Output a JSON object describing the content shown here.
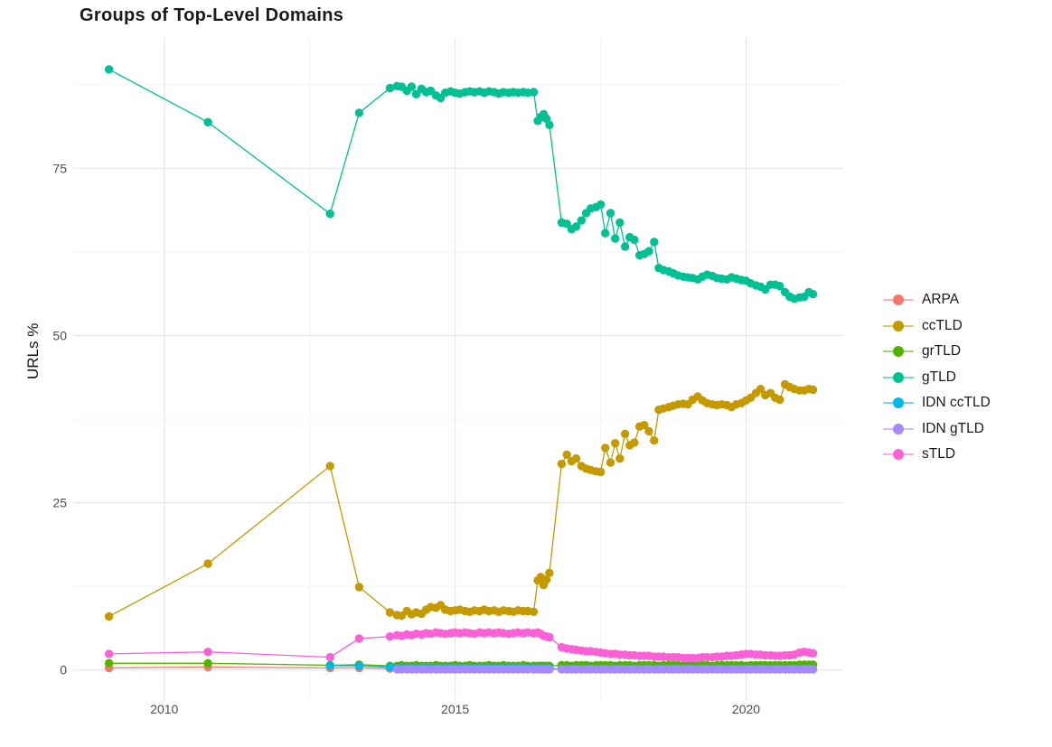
{
  "title": "Groups of Top-Level Domains",
  "axes": {
    "y_label": "URLs %",
    "x_tick_labels": [
      "2010",
      "2015",
      "2020"
    ],
    "y_tick_labels": [
      "0",
      "25",
      "50",
      "75"
    ]
  },
  "colors": {
    "grid_major": "#e5e5e5",
    "grid_minor": "#f2f2f2",
    "axis_text": "#4d4d4d",
    "title_text": "#1a1a1a"
  },
  "chart_data": {
    "type": "line",
    "title": "Groups of Top-Level Domains",
    "xlabel": "",
    "ylabel": "URLs %",
    "grid": true,
    "legend_position": "right",
    "x_range": [
      2008.45,
      2021.67
    ],
    "y_range": [
      -4.5,
      94.5
    ],
    "x_major_ticks": [
      2010,
      2015,
      2020
    ],
    "x_minor_gridlines": [
      2012.5,
      2017.5
    ],
    "y_major_ticks": [
      0,
      25,
      50,
      75
    ],
    "y_minor_gridlines": [
      12.5,
      37.5,
      62.5,
      87.5
    ],
    "x": [
      2009.05,
      2010.75,
      2012.85,
      2013.35,
      2013.88,
      2014.0,
      2014.08,
      2014.17,
      2014.25,
      2014.33,
      2014.42,
      2014.5,
      2014.58,
      2014.67,
      2014.75,
      2014.83,
      2014.92,
      2015.0,
      2015.08,
      2015.17,
      2015.25,
      2015.33,
      2015.42,
      2015.5,
      2015.58,
      2015.67,
      2015.75,
      2015.83,
      2015.92,
      2016.0,
      2016.08,
      2016.17,
      2016.25,
      2016.35,
      2016.42,
      2016.47,
      2016.52,
      2016.57,
      2016.62,
      2016.83,
      2016.92,
      2017.0,
      2017.08,
      2017.17,
      2017.25,
      2017.33,
      2017.42,
      2017.5,
      2017.58,
      2017.67,
      2017.75,
      2017.83,
      2017.92,
      2018.0,
      2018.08,
      2018.17,
      2018.25,
      2018.33,
      2018.42,
      2018.5,
      2018.58,
      2018.67,
      2018.75,
      2018.83,
      2018.92,
      2019.0,
      2019.08,
      2019.17,
      2019.25,
      2019.33,
      2019.42,
      2019.5,
      2019.58,
      2019.67,
      2019.75,
      2019.83,
      2019.92,
      2020.0,
      2020.08,
      2020.17,
      2020.25,
      2020.33,
      2020.42,
      2020.5,
      2020.58,
      2020.67,
      2020.75,
      2020.83,
      2020.92,
      2021.0,
      2021.08,
      2021.15
    ],
    "series": [
      {
        "name": "ARPA",
        "color": "#F8766D",
        "values": [
          0.3,
          0.45,
          0.3,
          0.3,
          0.2,
          0.15,
          0.15,
          0.15,
          0.15,
          0.15,
          0.15,
          0.15,
          0.15,
          0.15,
          0.15,
          0.15,
          0.15,
          0.15,
          0.15,
          0.15,
          0.15,
          0.15,
          0.15,
          0.15,
          0.15,
          0.15,
          0.15,
          0.15,
          0.15,
          0.15,
          0.15,
          0.15,
          0.15,
          0.15,
          0.12,
          0.12,
          0.12,
          0.12,
          0.12,
          0.1,
          0.1,
          0.1,
          0.1,
          0.1,
          0.1,
          0.1,
          0.1,
          0.1,
          0.1,
          0.1,
          0.1,
          0.1,
          0.1,
          0.1,
          0.1,
          0.1,
          0.1,
          0.1,
          0.1,
          0.1,
          0.1,
          0.1,
          0.1,
          0.1,
          0.1,
          0.1,
          0.1,
          0.1,
          0.1,
          0.1,
          0.1,
          0.1,
          0.1,
          0.1,
          0.1,
          0.1,
          0.1,
          0.1,
          0.1,
          0.1,
          0.1,
          0.1,
          0.1,
          0.1,
          0.1,
          0.1,
          0.1,
          0.1,
          0.1,
          0.1,
          0.1,
          0.1
        ]
      },
      {
        "name": "ccTLD",
        "color": "#C49A00",
        "values": [
          8.0,
          15.9,
          30.5,
          12.4,
          8.6,
          8.2,
          8.1,
          8.8,
          8.3,
          8.6,
          8.4,
          9.0,
          9.4,
          9.3,
          9.7,
          9.0,
          8.8,
          8.9,
          9.0,
          8.8,
          8.7,
          8.9,
          8.8,
          9.0,
          8.8,
          8.9,
          8.7,
          8.9,
          8.8,
          8.7,
          8.9,
          8.8,
          8.8,
          8.7,
          13.4,
          13.9,
          12.7,
          13.5,
          14.5,
          30.8,
          32.2,
          31.2,
          31.6,
          30.5,
          30.1,
          29.9,
          29.7,
          29.6,
          33.2,
          31.0,
          33.9,
          31.6,
          35.3,
          33.6,
          34.0,
          36.4,
          36.6,
          35.7,
          34.3,
          38.9,
          39.1,
          39.3,
          39.5,
          39.7,
          39.8,
          39.7,
          40.4,
          40.9,
          40.3,
          39.9,
          39.7,
          39.6,
          39.7,
          39.6,
          39.3,
          39.7,
          39.9,
          40.3,
          40.7,
          41.4,
          42.0,
          41.1,
          41.4,
          40.7,
          40.4,
          42.7,
          42.3,
          42.0,
          41.8,
          41.8,
          42.0,
          41.9
        ]
      },
      {
        "name": "grTLD",
        "color": "#53B400",
        "values": [
          1.0,
          1.0,
          0.7,
          0.8,
          0.6,
          0.6,
          0.7,
          0.6,
          0.6,
          0.7,
          0.6,
          0.6,
          0.6,
          0.7,
          0.6,
          0.6,
          0.6,
          0.7,
          0.6,
          0.6,
          0.7,
          0.6,
          0.6,
          0.6,
          0.7,
          0.6,
          0.6,
          0.7,
          0.6,
          0.6,
          0.6,
          0.7,
          0.6,
          0.6,
          0.6,
          0.6,
          0.6,
          0.6,
          0.6,
          0.7,
          0.7,
          0.6,
          0.7,
          0.7,
          0.7,
          0.6,
          0.7,
          0.7,
          0.7,
          0.7,
          0.6,
          0.7,
          0.7,
          0.7,
          0.6,
          0.7,
          0.7,
          0.7,
          0.7,
          0.6,
          0.7,
          0.7,
          0.7,
          0.7,
          0.6,
          0.7,
          0.7,
          0.7,
          0.7,
          0.7,
          0.6,
          0.7,
          0.7,
          0.7,
          0.7,
          0.7,
          0.7,
          0.6,
          0.7,
          0.7,
          0.7,
          0.7,
          0.7,
          0.7,
          0.7,
          0.7,
          0.7,
          0.7,
          0.8,
          0.8,
          0.8,
          0.8
        ]
      },
      {
        "name": "gTLD",
        "color": "#00C094",
        "values": [
          89.8,
          81.9,
          68.2,
          83.3,
          87.0,
          87.3,
          87.2,
          86.6,
          87.2,
          86.1,
          86.9,
          86.4,
          86.6,
          85.9,
          85.5,
          86.3,
          86.5,
          86.3,
          86.2,
          86.4,
          86.5,
          86.4,
          86.5,
          86.3,
          86.5,
          86.4,
          86.2,
          86.4,
          86.3,
          86.4,
          86.3,
          86.4,
          86.3,
          86.4,
          82.1,
          82.7,
          83.1,
          82.4,
          81.5,
          66.9,
          66.7,
          65.9,
          66.3,
          67.2,
          68.3,
          69.0,
          69.2,
          69.6,
          65.3,
          68.3,
          64.5,
          66.9,
          63.3,
          64.7,
          64.3,
          62.0,
          62.2,
          62.6,
          64.0,
          60.1,
          59.8,
          59.6,
          59.3,
          59.0,
          58.8,
          58.7,
          58.6,
          58.4,
          58.8,
          59.1,
          58.9,
          58.6,
          58.5,
          58.4,
          58.7,
          58.5,
          58.3,
          58.2,
          57.8,
          57.5,
          57.3,
          56.9,
          57.6,
          57.6,
          57.4,
          56.5,
          55.8,
          55.5,
          55.7,
          55.8,
          56.5,
          56.2
        ]
      },
      {
        "name": "IDN ccTLD",
        "color": "#00B6EB",
        "values": [
          null,
          null,
          0.65,
          0.6,
          0.4,
          0.3,
          0.3,
          0.3,
          0.3,
          0.3,
          0.3,
          0.3,
          0.3,
          0.3,
          0.3,
          0.3,
          0.3,
          0.3,
          0.3,
          0.3,
          0.3,
          0.3,
          0.3,
          0.3,
          0.3,
          0.3,
          0.3,
          0.3,
          0.3,
          0.3,
          0.3,
          0.3,
          0.3,
          0.3,
          0.25,
          0.25,
          0.25,
          0.25,
          0.25,
          0.12,
          0.12,
          0.12,
          0.12,
          0.12,
          0.12,
          0.12,
          0.12,
          0.12,
          0.12,
          0.12,
          0.12,
          0.12,
          0.12,
          0.12,
          0.12,
          0.12,
          0.12,
          0.12,
          0.12,
          0.12,
          0.12,
          0.12,
          0.12,
          0.12,
          0.12,
          0.12,
          0.12,
          0.12,
          0.12,
          0.12,
          0.12,
          0.12,
          0.12,
          0.12,
          0.12,
          0.12,
          0.12,
          0.12,
          0.12,
          0.12,
          0.12,
          0.12,
          0.12,
          0.12,
          0.12,
          0.12,
          0.12,
          0.12,
          0.12,
          0.12,
          0.12,
          0.12
        ]
      },
      {
        "name": "IDN gTLD",
        "color": "#A58AFF",
        "values": [
          null,
          null,
          null,
          null,
          null,
          0.1,
          0.1,
          0.1,
          0.1,
          0.1,
          0.1,
          0.1,
          0.1,
          0.1,
          0.1,
          0.1,
          0.1,
          0.1,
          0.1,
          0.1,
          0.1,
          0.1,
          0.1,
          0.1,
          0.1,
          0.1,
          0.1,
          0.1,
          0.1,
          0.1,
          0.1,
          0.1,
          0.1,
          0.1,
          0.1,
          0.1,
          0.1,
          0.1,
          0.1,
          0.1,
          0.1,
          0.1,
          0.1,
          0.1,
          0.1,
          0.1,
          0.1,
          0.1,
          0.1,
          0.1,
          0.1,
          0.1,
          0.1,
          0.1,
          0.1,
          0.1,
          0.1,
          0.1,
          0.1,
          0.1,
          0.1,
          0.1,
          0.1,
          0.1,
          0.1,
          0.1,
          0.1,
          0.1,
          0.1,
          0.1,
          0.1,
          0.1,
          0.1,
          0.1,
          0.1,
          0.1,
          0.1,
          0.1,
          0.1,
          0.1,
          0.1,
          0.1,
          0.1,
          0.1,
          0.1,
          0.1,
          0.1,
          0.1,
          0.1,
          0.1,
          0.1,
          0.1
        ]
      },
      {
        "name": "sTLD",
        "color": "#FB61D7",
        "values": [
          2.4,
          2.7,
          1.9,
          4.7,
          5.0,
          5.2,
          5.1,
          5.3,
          5.2,
          5.4,
          5.3,
          5.5,
          5.4,
          5.6,
          5.5,
          5.4,
          5.5,
          5.6,
          5.5,
          5.6,
          5.5,
          5.4,
          5.6,
          5.5,
          5.6,
          5.5,
          5.6,
          5.5,
          5.4,
          5.5,
          5.6,
          5.5,
          5.6,
          5.5,
          5.6,
          5.4,
          5.1,
          5.0,
          4.9,
          3.4,
          3.2,
          3.1,
          3.0,
          2.9,
          2.8,
          2.8,
          2.7,
          2.6,
          2.5,
          2.4,
          2.4,
          2.3,
          2.3,
          2.2,
          2.2,
          2.1,
          2.1,
          2.1,
          2.0,
          2.0,
          2.0,
          1.9,
          1.9,
          1.9,
          1.8,
          1.8,
          1.8,
          1.8,
          1.9,
          1.9,
          1.9,
          2.0,
          2.0,
          2.1,
          2.1,
          2.2,
          2.3,
          2.4,
          2.4,
          2.3,
          2.3,
          2.2,
          2.2,
          2.1,
          2.1,
          2.2,
          2.2,
          2.3,
          2.6,
          2.7,
          2.6,
          2.5
        ]
      }
    ]
  }
}
